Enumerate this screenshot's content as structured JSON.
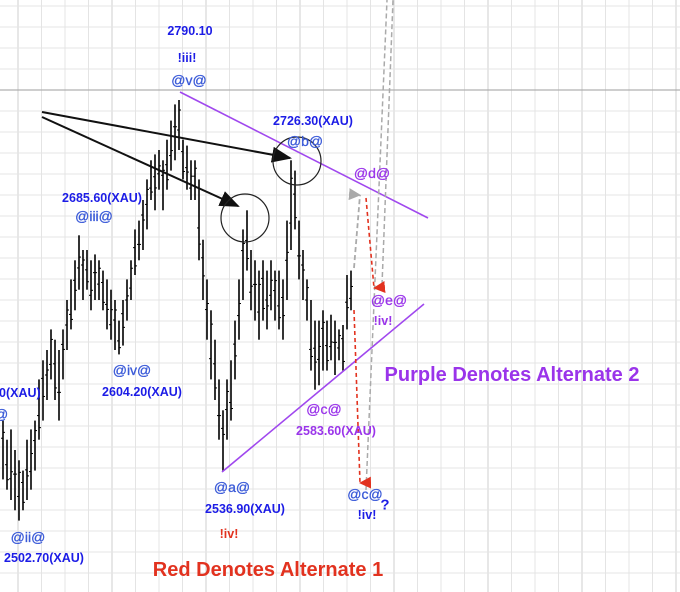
{
  "chart_data": {
    "type": "ohlc-bar",
    "instrument": "XAU",
    "grid": true,
    "colors": {
      "primary_labels": "#1c1ce6",
      "alternate_1": "#e2321f",
      "alternate_2": "#9a34ea",
      "bars": "#000000",
      "projection": "#999999"
    },
    "bars_high_low": [
      [
        2572,
        2532
      ],
      [
        2559,
        2525
      ],
      [
        2566,
        2518
      ],
      [
        2552,
        2511
      ],
      [
        2545,
        2504
      ],
      [
        2538,
        2511
      ],
      [
        2559,
        2518
      ],
      [
        2566,
        2525
      ],
      [
        2572,
        2538
      ],
      [
        2600,
        2559
      ],
      [
        2613,
        2572
      ],
      [
        2620,
        2586
      ],
      [
        2634,
        2600
      ],
      [
        2627,
        2586
      ],
      [
        2620,
        2572
      ],
      [
        2634,
        2600
      ],
      [
        2654,
        2620
      ],
      [
        2668,
        2634
      ],
      [
        2681,
        2647
      ],
      [
        2698,
        2661
      ],
      [
        2688,
        2654
      ],
      [
        2688,
        2661
      ],
      [
        2681,
        2647
      ],
      [
        2685,
        2654
      ],
      [
        2681,
        2654
      ],
      [
        2674,
        2647
      ],
      [
        2668,
        2634
      ],
      [
        2661,
        2627
      ],
      [
        2654,
        2620
      ],
      [
        2640,
        2617
      ],
      [
        2654,
        2623
      ],
      [
        2668,
        2640
      ],
      [
        2681,
        2654
      ],
      [
        2702,
        2671
      ],
      [
        2708,
        2681
      ],
      [
        2722,
        2688
      ],
      [
        2736,
        2702
      ],
      [
        2749,
        2722
      ],
      [
        2753,
        2715
      ],
      [
        2756,
        2729
      ],
      [
        2749,
        2715
      ],
      [
        2763,
        2729
      ],
      [
        2776,
        2742
      ],
      [
        2787,
        2749
      ],
      [
        2790,
        2756
      ],
      [
        2763,
        2736
      ],
      [
        2759,
        2729
      ],
      [
        2749,
        2722
      ],
      [
        2749,
        2722
      ],
      [
        2736,
        2681
      ],
      [
        2695,
        2654
      ],
      [
        2668,
        2627
      ],
      [
        2647,
        2600
      ],
      [
        2627,
        2586
      ],
      [
        2600,
        2559
      ],
      [
        2579,
        2538
      ],
      [
        2600,
        2559
      ],
      [
        2613,
        2572
      ],
      [
        2640,
        2600
      ],
      [
        2668,
        2627
      ],
      [
        2702,
        2654
      ],
      [
        2715,
        2674
      ],
      [
        2688,
        2647
      ],
      [
        2681,
        2640
      ],
      [
        2674,
        2627
      ],
      [
        2681,
        2640
      ],
      [
        2674,
        2634
      ],
      [
        2681,
        2647
      ],
      [
        2674,
        2640
      ],
      [
        2674,
        2634
      ],
      [
        2668,
        2627
      ],
      [
        2708,
        2654
      ],
      [
        2749,
        2688
      ],
      [
        2742,
        2702
      ],
      [
        2708,
        2668
      ],
      [
        2688,
        2654
      ],
      [
        2668,
        2640
      ],
      [
        2654,
        2606
      ],
      [
        2640,
        2593
      ],
      [
        2640,
        2596
      ],
      [
        2647,
        2606
      ],
      [
        2640,
        2606
      ],
      [
        2644,
        2613
      ],
      [
        2640,
        2603
      ],
      [
        2634,
        2613
      ],
      [
        2637,
        2606
      ],
      [
        2671,
        2634
      ],
      [
        2674,
        2647
      ]
    ],
    "annotations": {
      "v_price": "2790.10",
      "v_alt1": "!iii!",
      "v_label": "@v@",
      "b_price": "2726.30(XAU)",
      "b_label": "@b@",
      "iii_price": "2685.60(XAU)",
      "iii_label": "@iii@",
      "iv_label": "@iv@",
      "iv_price": "2604.20(XAU)",
      "left_cut_price": "0(XAU)",
      "left_cut_label": "@",
      "ii_label": "@ii@",
      "ii_price": "2502.70(XAU)",
      "a_label": "@a@",
      "a_price": "2536.90(XAU)",
      "a_alt1": "!iv!",
      "d_alt2": "@d@",
      "e_alt2": "@e@",
      "e_alt2_sub": "!iv!",
      "c_alt2": "@c@",
      "c_alt2_price": "2583.60(XAU)",
      "c_label": "@c@",
      "c_alt1": "!iv!",
      "question": "?"
    },
    "legend": {
      "alternate_1": "Red Denotes Alternate 1",
      "alternate_2": "Purple Denotes Alternate 2"
    }
  }
}
